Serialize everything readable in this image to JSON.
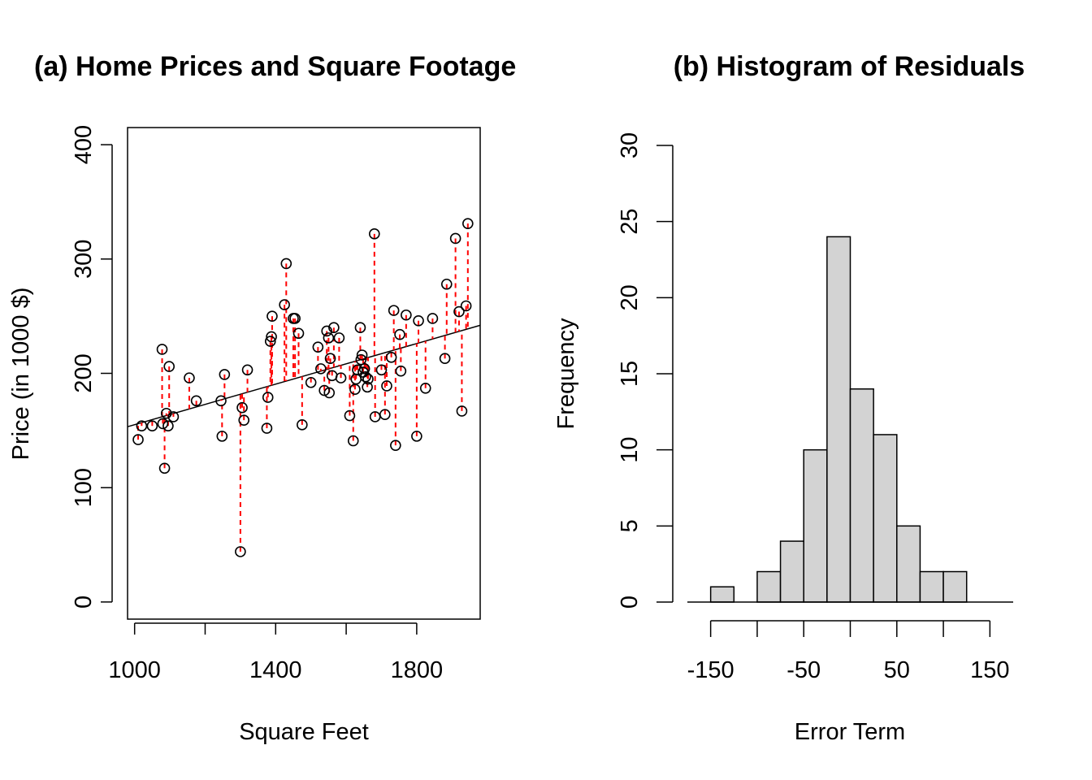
{
  "chart_data": [
    {
      "type": "scatter",
      "title": "(a) Home Prices and Square Footage",
      "xlabel": "Square Feet",
      "ylabel": "Price (in 1000 $)",
      "xlim": [
        980,
        1980
      ],
      "ylim": [
        -15,
        415
      ],
      "xticks": [
        1000,
        1200,
        1400,
        1600,
        1800
      ],
      "xtick_labels": [
        "1000",
        "",
        "1400",
        "",
        "1800"
      ],
      "yticks": [
        0,
        100,
        200,
        300,
        400
      ],
      "ytick_labels": [
        "0",
        "100",
        "200",
        "300",
        "400"
      ],
      "regression_line": {
        "intercept": 66.4,
        "slope": 0.0887
      },
      "residual_color": "#ff0000",
      "points": [
        [
          1010,
          142
        ],
        [
          1020,
          154
        ],
        [
          1050,
          154
        ],
        [
          1078,
          221
        ],
        [
          1080,
          156
        ],
        [
          1085,
          117
        ],
        [
          1090,
          165
        ],
        [
          1095,
          154
        ],
        [
          1098,
          206
        ],
        [
          1110,
          162
        ],
        [
          1155,
          196
        ],
        [
          1175,
          176
        ],
        [
          1245,
          176
        ],
        [
          1248,
          145
        ],
        [
          1255,
          199
        ],
        [
          1300,
          44
        ],
        [
          1305,
          170
        ],
        [
          1310,
          159
        ],
        [
          1320,
          203
        ],
        [
          1375,
          152
        ],
        [
          1378,
          179
        ],
        [
          1385,
          228
        ],
        [
          1388,
          232
        ],
        [
          1390,
          250
        ],
        [
          1425,
          260
        ],
        [
          1430,
          296
        ],
        [
          1450,
          248
        ],
        [
          1455,
          248
        ],
        [
          1465,
          235
        ],
        [
          1475,
          155
        ],
        [
          1500,
          192
        ],
        [
          1520,
          223
        ],
        [
          1528,
          204
        ],
        [
          1538,
          185
        ],
        [
          1545,
          237
        ],
        [
          1550,
          231
        ],
        [
          1552,
          183
        ],
        [
          1555,
          213
        ],
        [
          1560,
          198
        ],
        [
          1565,
          240
        ],
        [
          1580,
          231
        ],
        [
          1585,
          196
        ],
        [
          1610,
          163
        ],
        [
          1620,
          141
        ],
        [
          1625,
          186
        ],
        [
          1628,
          195
        ],
        [
          1632,
          203
        ],
        [
          1640,
          240
        ],
        [
          1642,
          212
        ],
        [
          1645,
          216
        ],
        [
          1648,
          201
        ],
        [
          1652,
          204
        ],
        [
          1655,
          197
        ],
        [
          1660,
          188
        ],
        [
          1662,
          195
        ],
        [
          1680,
          322
        ],
        [
          1682,
          162
        ],
        [
          1700,
          203
        ],
        [
          1710,
          164
        ],
        [
          1715,
          189
        ],
        [
          1728,
          214
        ],
        [
          1735,
          255
        ],
        [
          1740,
          137
        ],
        [
          1752,
          234
        ],
        [
          1755,
          202
        ],
        [
          1770,
          251
        ],
        [
          1800,
          145
        ],
        [
          1805,
          246
        ],
        [
          1825,
          187
        ],
        [
          1845,
          248
        ],
        [
          1880,
          213
        ],
        [
          1885,
          278
        ],
        [
          1910,
          318
        ],
        [
          1920,
          254
        ],
        [
          1928,
          167
        ],
        [
          1940,
          259
        ],
        [
          1945,
          331
        ]
      ]
    },
    {
      "type": "bar",
      "title": "(b) Histogram of Residuals",
      "xlabel": "Error Term",
      "ylabel": "Frequency",
      "xlim": [
        -175,
        175
      ],
      "ylim": [
        0,
        30
      ],
      "xticks": [
        -150,
        -100,
        -50,
        0,
        50,
        100,
        150
      ],
      "xtick_labels": [
        "-150",
        "",
        "-50",
        "",
        "50",
        "",
        "150"
      ],
      "yticks": [
        0,
        5,
        10,
        15,
        20,
        25,
        30
      ],
      "ytick_labels": [
        "0",
        "5",
        "10",
        "15",
        "20",
        "25",
        "30"
      ],
      "bin_edges": [
        -175,
        -150,
        -125,
        -100,
        -75,
        -50,
        -25,
        0,
        25,
        50,
        75,
        100,
        125,
        150,
        175
      ],
      "counts": [
        0,
        1,
        0,
        2,
        4,
        10,
        24,
        14,
        11,
        5,
        2,
        2,
        0,
        0
      ],
      "bar_color": "#d3d3d3"
    }
  ]
}
